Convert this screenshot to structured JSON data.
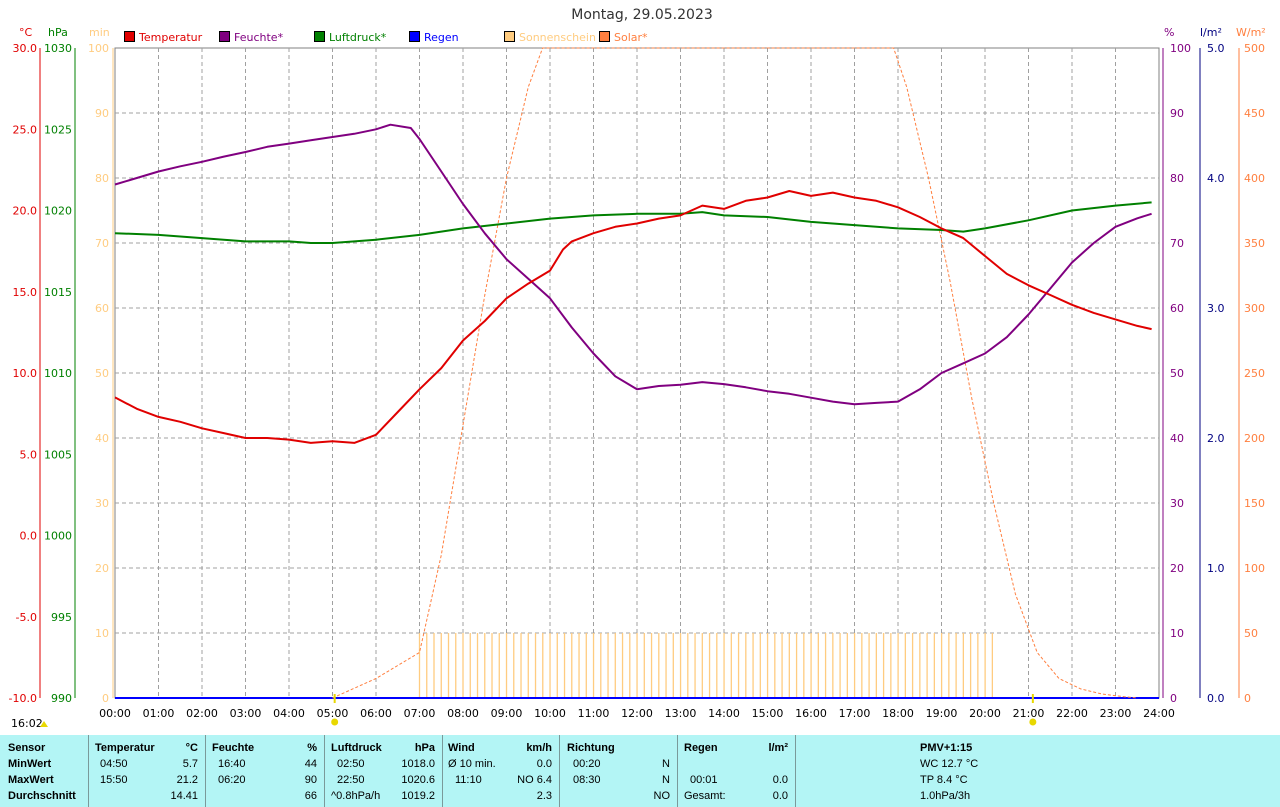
{
  "title": "Montag, 29.05.2023",
  "legend": [
    {
      "label": "Temperatur",
      "color": "#e00000"
    },
    {
      "label": "Feuchte*",
      "color": "#800080"
    },
    {
      "label": "Luftdruck*",
      "color": "#008000"
    },
    {
      "label": "Regen",
      "color": "#0000ff"
    },
    {
      "label": "Sonnenschein",
      "color": "#ffcc80"
    },
    {
      "label": "Solar*",
      "color": "#ff7f3f"
    }
  ],
  "axis_units": {
    "temp": "°C",
    "pressure": "hPa",
    "sunshine": "min",
    "humidity": "%",
    "rain": "l/m²",
    "solar": "W/m²"
  },
  "axes": {
    "temp_ticks": [
      "30.0",
      "25.0",
      "20.0",
      "15.0",
      "10.0",
      "5.0",
      "0.0",
      "-5.0",
      "-10.0"
    ],
    "pressure_ticks": [
      "1030",
      "1025",
      "1020",
      "1015",
      "1010",
      "1005",
      "1000",
      "995",
      "990"
    ],
    "sunshine_ticks": [
      "100",
      "90",
      "80",
      "70",
      "60",
      "50",
      "40",
      "30",
      "20",
      "10",
      "0"
    ],
    "humidity_ticks": [
      "100",
      "90",
      "80",
      "70",
      "60",
      "50",
      "40",
      "30",
      "20",
      "10",
      "0"
    ],
    "rain_ticks": [
      "5.0",
      "4.0",
      "3.0",
      "2.0",
      "1.0",
      "0.0"
    ],
    "solar_ticks": [
      "500",
      "450",
      "400",
      "350",
      "300",
      "250",
      "200",
      "150",
      "100",
      "50",
      "0"
    ]
  },
  "current_time": "16:02",
  "chart_data": {
    "type": "line",
    "x": [
      "00:00",
      "01:00",
      "02:00",
      "03:00",
      "04:00",
      "05:00",
      "06:00",
      "07:00",
      "08:00",
      "09:00",
      "10:00",
      "11:00",
      "12:00",
      "13:00",
      "14:00",
      "15:00",
      "16:00",
      "17:00",
      "18:00",
      "19:00",
      "20:00",
      "21:00",
      "22:00",
      "23:00",
      "24:00"
    ],
    "xlim": [
      0,
      24
    ],
    "ylim_temp": [
      -10,
      30
    ],
    "ylim_pressure": [
      990,
      1030
    ],
    "ylim_humidity": [
      0,
      100
    ],
    "ylim_sunshine": [
      0,
      100
    ],
    "ylim_rain": [
      0,
      5
    ],
    "ylim_solar": [
      0,
      500
    ],
    "grid": true,
    "legend_position": "top",
    "series": [
      {
        "name": "Temperatur",
        "axis": "temp",
        "color": "#e00000",
        "points": [
          [
            0,
            8.5
          ],
          [
            0.5,
            7.8
          ],
          [
            1,
            7.3
          ],
          [
            1.5,
            7.0
          ],
          [
            2,
            6.6
          ],
          [
            2.5,
            6.3
          ],
          [
            3,
            6.0
          ],
          [
            3.5,
            6.0
          ],
          [
            4,
            5.9
          ],
          [
            4.5,
            5.7
          ],
          [
            5,
            5.8
          ],
          [
            5.5,
            5.7
          ],
          [
            6,
            6.2
          ],
          [
            6.5,
            7.6
          ],
          [
            7,
            9.0
          ],
          [
            7.5,
            10.3
          ],
          [
            8,
            12.0
          ],
          [
            8.5,
            13.2
          ],
          [
            9,
            14.6
          ],
          [
            9.5,
            15.5
          ],
          [
            10,
            16.3
          ],
          [
            10.3,
            17.6
          ],
          [
            10.5,
            18.1
          ],
          [
            11,
            18.6
          ],
          [
            11.5,
            19.0
          ],
          [
            12,
            19.2
          ],
          [
            12.5,
            19.5
          ],
          [
            13,
            19.7
          ],
          [
            13.5,
            20.3
          ],
          [
            14,
            20.1
          ],
          [
            14.5,
            20.6
          ],
          [
            15,
            20.8
          ],
          [
            15.5,
            21.2
          ],
          [
            16,
            20.9
          ],
          [
            16.5,
            21.1
          ],
          [
            17,
            20.8
          ],
          [
            17.5,
            20.6
          ],
          [
            18,
            20.2
          ],
          [
            18.5,
            19.6
          ],
          [
            19,
            18.9
          ],
          [
            19.5,
            18.3
          ],
          [
            20,
            17.2
          ],
          [
            20.5,
            16.1
          ],
          [
            21,
            15.4
          ],
          [
            21.5,
            14.8
          ],
          [
            22,
            14.2
          ],
          [
            22.5,
            13.7
          ],
          [
            23,
            13.3
          ],
          [
            23.5,
            12.9
          ],
          [
            23.83,
            12.7
          ]
        ]
      },
      {
        "name": "Feuchte*",
        "axis": "humidity",
        "color": "#800080",
        "points": [
          [
            0,
            79
          ],
          [
            0.5,
            80
          ],
          [
            1,
            81
          ],
          [
            1.5,
            81.8
          ],
          [
            2,
            82.5
          ],
          [
            2.5,
            83.3
          ],
          [
            3,
            84
          ],
          [
            3.5,
            84.8
          ],
          [
            4,
            85.3
          ],
          [
            4.5,
            85.8
          ],
          [
            5,
            86.3
          ],
          [
            5.5,
            86.8
          ],
          [
            6,
            87.5
          ],
          [
            6.33,
            88.2
          ],
          [
            6.8,
            87.7
          ],
          [
            7,
            86
          ],
          [
            7.5,
            81
          ],
          [
            8,
            76
          ],
          [
            8.5,
            71.5
          ],
          [
            9,
            67.5
          ],
          [
            9.5,
            64.5
          ],
          [
            10,
            61.5
          ],
          [
            10.5,
            57
          ],
          [
            11,
            53
          ],
          [
            11.5,
            49.5
          ],
          [
            12,
            47.5
          ],
          [
            12.5,
            48
          ],
          [
            13,
            48.2
          ],
          [
            13.5,
            48.6
          ],
          [
            14,
            48.3
          ],
          [
            14.5,
            47.8
          ],
          [
            15,
            47.2
          ],
          [
            15.5,
            46.8
          ],
          [
            16,
            46.2
          ],
          [
            16.5,
            45.6
          ],
          [
            17,
            45.2
          ],
          [
            17.5,
            45.4
          ],
          [
            18,
            45.6
          ],
          [
            18.5,
            47.5
          ],
          [
            19,
            50
          ],
          [
            19.5,
            51.5
          ],
          [
            20,
            53
          ],
          [
            20.5,
            55.5
          ],
          [
            21,
            59
          ],
          [
            21.5,
            63
          ],
          [
            22,
            67
          ],
          [
            22.5,
            70
          ],
          [
            23,
            72.5
          ],
          [
            23.5,
            73.8
          ],
          [
            23.83,
            74.5
          ]
        ]
      },
      {
        "name": "Luftdruck*",
        "axis": "pressure",
        "color": "#008000",
        "points": [
          [
            0,
            1018.6
          ],
          [
            1,
            1018.5
          ],
          [
            2,
            1018.3
          ],
          [
            3,
            1018.1
          ],
          [
            4,
            1018.1
          ],
          [
            4.5,
            1018.0
          ],
          [
            5,
            1018.0
          ],
          [
            6,
            1018.2
          ],
          [
            7,
            1018.5
          ],
          [
            8,
            1018.9
          ],
          [
            9,
            1019.2
          ],
          [
            10,
            1019.5
          ],
          [
            11,
            1019.7
          ],
          [
            12,
            1019.8
          ],
          [
            13,
            1019.8
          ],
          [
            13.5,
            1019.9
          ],
          [
            14,
            1019.7
          ],
          [
            15,
            1019.6
          ],
          [
            16,
            1019.3
          ],
          [
            17,
            1019.1
          ],
          [
            18,
            1018.9
          ],
          [
            19,
            1018.8
          ],
          [
            19.5,
            1018.7
          ],
          [
            20,
            1018.9
          ],
          [
            21,
            1019.4
          ],
          [
            22,
            1020.0
          ],
          [
            23,
            1020.3
          ],
          [
            23.83,
            1020.5
          ]
        ]
      },
      {
        "name": "Solar*",
        "axis": "solar",
        "color": "#ff7f3f",
        "points": [
          [
            5,
            0
          ],
          [
            6,
            15
          ],
          [
            7,
            35
          ],
          [
            7.5,
            110
          ],
          [
            8,
            210
          ],
          [
            8.5,
            310
          ],
          [
            9,
            400
          ],
          [
            9.5,
            470
          ],
          [
            9.83,
            510
          ],
          [
            17.9,
            510
          ],
          [
            18.2,
            470
          ],
          [
            18.7,
            400
          ],
          [
            19.2,
            320
          ],
          [
            19.7,
            230
          ],
          [
            20.2,
            150
          ],
          [
            20.7,
            80
          ],
          [
            21.2,
            35
          ],
          [
            21.7,
            15
          ],
          [
            22.2,
            7
          ],
          [
            22.7,
            3
          ],
          [
            23.2,
            1
          ],
          [
            23.5,
            0
          ]
        ]
      },
      {
        "name": "Sonnenschein",
        "axis": "sunshine",
        "color": "#ffcc80",
        "bars_start": 7.0,
        "bars_end": 20.33,
        "bar_step": 0.1667,
        "bar_value": 10
      },
      {
        "name": "Regen",
        "axis": "rain",
        "color": "#0000ff",
        "points": [
          [
            0,
            0
          ],
          [
            24,
            0
          ]
        ]
      }
    ]
  },
  "stats": {
    "headers": {
      "sensor": "Sensor",
      "temperatur": "Temperatur",
      "temp_unit": "°C",
      "feuchte": "Feuchte",
      "feuchte_unit": "%",
      "luftdruck": "Luftdruck",
      "luft_unit": "hPa",
      "wind": "Wind",
      "wind_unit": "km/h",
      "richtung": "Richtung",
      "regen": "Regen",
      "regen_unit": "l/m²",
      "pmv": "PMV+1:15"
    },
    "rows": {
      "min": {
        "label": "MinWert",
        "temp_time": "04:50",
        "temp_val": "5.7",
        "hum_time": "16:40",
        "hum_val": "44",
        "press_time": "02:50",
        "press_val": "1018.0",
        "wind_label": "Ø 10 min.",
        "wind_val": "0.0",
        "dir_time": "00:20",
        "dir_val": "N",
        "pmv": "WC 12.7 °C"
      },
      "max": {
        "label": "MaxWert",
        "temp_time": "15:50",
        "temp_val": "21.2",
        "hum_time": "06:20",
        "hum_val": "90",
        "press_time": "22:50",
        "press_val": "1020.6",
        "wind_time": "11:10",
        "wind_val": "NO 6.4",
        "dir_time": "08:30",
        "dir_val": "N",
        "rain_time": "00:01",
        "rain_val": "0.0",
        "pmv": "TP 8.4 °C"
      },
      "avg": {
        "label": "Durchschnitt",
        "temp_val": "14.41",
        "hum_val": "66",
        "press_trend": "^0.8hPa/h",
        "press_val": "1019.2",
        "wind_val": "2.3",
        "dir_val": "NO",
        "rain_label": "Gesamt:",
        "rain_val": "0.0",
        "pmv": "1.0hPa/3h"
      }
    }
  }
}
